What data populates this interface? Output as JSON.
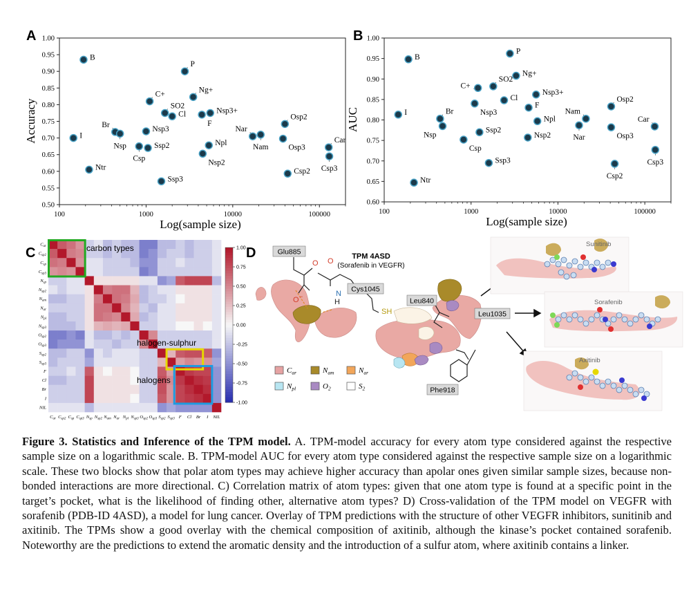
{
  "panels": {
    "A": {
      "letter": "A",
      "chart_data": {
        "type": "scatter",
        "title": "",
        "xlabel": "Log(sample size)",
        "ylabel": "Accuracy",
        "xscale": "log",
        "xlim": [
          100,
          200000
        ],
        "ylim": [
          0.5,
          1.0
        ],
        "xticks": [
          100,
          1000,
          10000,
          100000
        ],
        "xtick_labels": [
          "100",
          "1000",
          "10000",
          "100000"
        ],
        "yticks": [
          0.5,
          0.55,
          0.6,
          0.65,
          0.7,
          0.75,
          0.8,
          0.85,
          0.9,
          0.95,
          1.0
        ],
        "ytick_labels": [
          "0.50",
          "0.55",
          "0.60",
          "0.65",
          "0.70",
          "0.75",
          "0.80",
          "0.85",
          "0.90",
          "0.95",
          "1.00"
        ],
        "points": [
          {
            "label": "B",
            "x": 190,
            "y": 0.935,
            "pos": "r"
          },
          {
            "label": "I",
            "x": 145,
            "y": 0.7,
            "pos": "r"
          },
          {
            "label": "Ntr",
            "x": 220,
            "y": 0.605,
            "pos": "r"
          },
          {
            "label": "Br",
            "x": 440,
            "y": 0.718,
            "pos": "tl"
          },
          {
            "label": "Nsp",
            "x": 500,
            "y": 0.713,
            "pos": "b"
          },
          {
            "label": "Csp",
            "x": 830,
            "y": 0.675,
            "pos": "b"
          },
          {
            "label": "Ssp2",
            "x": 1050,
            "y": 0.67,
            "pos": "r"
          },
          {
            "label": "Nsp3",
            "x": 1000,
            "y": 0.72,
            "pos": "r"
          },
          {
            "label": "C+",
            "x": 1100,
            "y": 0.81,
            "pos": "tr"
          },
          {
            "label": "SO2",
            "x": 1650,
            "y": 0.775,
            "pos": "tr"
          },
          {
            "label": "Cl",
            "x": 2000,
            "y": 0.765,
            "pos": "r"
          },
          {
            "label": "P",
            "x": 2800,
            "y": 0.9,
            "pos": "tr"
          },
          {
            "label": "Ng+",
            "x": 3500,
            "y": 0.823,
            "pos": "tr"
          },
          {
            "label": "Ssp3",
            "x": 1500,
            "y": 0.57,
            "pos": "r"
          },
          {
            "label": "F",
            "x": 4400,
            "y": 0.77,
            "pos": "br"
          },
          {
            "label": "Nsp3+",
            "x": 5500,
            "y": 0.775,
            "pos": "r"
          },
          {
            "label": "Npl",
            "x": 5300,
            "y": 0.678,
            "pos": "r"
          },
          {
            "label": "Nsp2",
            "x": 4500,
            "y": 0.653,
            "pos": "br"
          },
          {
            "label": "Nar",
            "x": 17000,
            "y": 0.705,
            "pos": "tl"
          },
          {
            "label": "Nam",
            "x": 21000,
            "y": 0.71,
            "pos": "b"
          },
          {
            "label": "Osp2",
            "x": 40000,
            "y": 0.742,
            "pos": "tr"
          },
          {
            "label": "Osp3",
            "x": 38000,
            "y": 0.698,
            "pos": "br"
          },
          {
            "label": "Csp2",
            "x": 43000,
            "y": 0.593,
            "pos": "r"
          },
          {
            "label": "Car",
            "x": 128000,
            "y": 0.672,
            "pos": "tr"
          },
          {
            "label": "Csp3",
            "x": 130000,
            "y": 0.645,
            "pos": "b"
          }
        ]
      }
    },
    "B": {
      "letter": "B",
      "chart_data": {
        "type": "scatter",
        "title": "",
        "xlabel": "Log(sample size)",
        "ylabel": "AUC",
        "xscale": "log",
        "xlim": [
          100,
          200000
        ],
        "ylim": [
          0.6,
          1.0
        ],
        "xticks": [
          100,
          1000,
          10000,
          100000
        ],
        "xtick_labels": [
          "100",
          "1000",
          "10000",
          "100000"
        ],
        "yticks": [
          0.6,
          0.65,
          0.7,
          0.75,
          0.8,
          0.85,
          0.9,
          0.95,
          1.0
        ],
        "ytick_labels": [
          "0.60",
          "0.65",
          "0.70",
          "0.75",
          "0.80",
          "0.85",
          "0.90",
          "0.95",
          "1.00"
        ],
        "points": [
          {
            "label": "B",
            "x": 190,
            "y": 0.948,
            "pos": "r"
          },
          {
            "label": "I",
            "x": 145,
            "y": 0.813,
            "pos": "r"
          },
          {
            "label": "Ntr",
            "x": 220,
            "y": 0.647,
            "pos": "r"
          },
          {
            "label": "Br",
            "x": 440,
            "y": 0.803,
            "pos": "tr"
          },
          {
            "label": "Nsp",
            "x": 470,
            "y": 0.785,
            "pos": "bl"
          },
          {
            "label": "Csp",
            "x": 820,
            "y": 0.752,
            "pos": "br"
          },
          {
            "label": "Ssp2",
            "x": 1250,
            "y": 0.77,
            "pos": "r"
          },
          {
            "label": "Nsp3",
            "x": 1100,
            "y": 0.84,
            "pos": "br"
          },
          {
            "label": "C+",
            "x": 1200,
            "y": 0.878,
            "pos": "l"
          },
          {
            "label": "SO2",
            "x": 1800,
            "y": 0.882,
            "pos": "tr"
          },
          {
            "label": "Cl",
            "x": 2400,
            "y": 0.848,
            "pos": "r"
          },
          {
            "label": "P",
            "x": 2800,
            "y": 0.962,
            "pos": "r"
          },
          {
            "label": "Ng+",
            "x": 3300,
            "y": 0.908,
            "pos": "r"
          },
          {
            "label": "Ssp3",
            "x": 1600,
            "y": 0.695,
            "pos": "r"
          },
          {
            "label": "F",
            "x": 4600,
            "y": 0.83,
            "pos": "r"
          },
          {
            "label": "Nsp3+",
            "x": 5600,
            "y": 0.862,
            "pos": "r"
          },
          {
            "label": "Npl",
            "x": 5800,
            "y": 0.797,
            "pos": "r"
          },
          {
            "label": "Nsp2",
            "x": 4500,
            "y": 0.757,
            "pos": "r"
          },
          {
            "label": "Nam",
            "x": 21000,
            "y": 0.803,
            "pos": "tl"
          },
          {
            "label": "Nar",
            "x": 17500,
            "y": 0.787,
            "pos": "b"
          },
          {
            "label": "Osp2",
            "x": 41000,
            "y": 0.833,
            "pos": "tr"
          },
          {
            "label": "Osp3",
            "x": 41000,
            "y": 0.782,
            "pos": "br"
          },
          {
            "label": "Csp2",
            "x": 45000,
            "y": 0.693,
            "pos": "b"
          },
          {
            "label": "Car",
            "x": 130000,
            "y": 0.784,
            "pos": "tl"
          },
          {
            "label": "Csp3",
            "x": 132000,
            "y": 0.727,
            "pos": "b"
          }
        ]
      }
    },
    "C": {
      "letter": "C",
      "chart_data": {
        "type": "heatmap",
        "row_labels": [
          "Car",
          "Csp2",
          "Csp",
          "Csp3",
          "Nsp",
          "Nsp2",
          "Nam",
          "Nar",
          "Npl",
          "Nsp3",
          "Osp2",
          "Osp3",
          "Ssp2",
          "Ssp3",
          "F",
          "Cl",
          "Br",
          "I",
          "NIL"
        ],
        "col_labels": [
          "Car",
          "Csp2",
          "Csp",
          "Csp3",
          "Nsp",
          "Nsp2",
          "Nam",
          "Nar",
          "Npl",
          "Nsp3",
          "Osp2",
          "Osp3",
          "Ssp2",
          "Ssp3",
          "F",
          "Cl",
          "Br",
          "I",
          "NIL"
        ],
        "tick_row_display": [
          "C_ar",
          "C_sp2",
          "C_sp",
          "C_sp3",
          "N_sp",
          "N_sp2",
          "N_am",
          "N_ar",
          "N_pl",
          "N_sp3",
          "O_sp2",
          "O_sp3",
          "S_sp2",
          "S_sp3",
          "F",
          "Cl",
          "Br",
          "I",
          "NIL"
        ],
        "tick_col_display": [
          "C_ar",
          "C_sp2",
          "C_sp",
          "C_sp3",
          "N_sp",
          "N_sp2",
          "N_am",
          "N_ar",
          "N_pl",
          "N_sp3",
          "O_sp2",
          "O_sp3",
          "S_sp2",
          "S_sp3",
          "F",
          "Cl",
          "Br",
          "I",
          "NIL"
        ],
        "vmin": -1.0,
        "vmax": 1.0,
        "colorbar_ticks": [
          "1.00",
          "0.75",
          "0.50",
          "0.25",
          "0.00",
          "-0.25",
          "-0.50",
          "-0.75",
          "-1.00"
        ],
        "values": [
          [
            1.0,
            0.7,
            0.6,
            0.45,
            -0.2,
            -0.1,
            -0.3,
            -0.2,
            -0.3,
            -0.3,
            -0.6,
            -0.6,
            -0.3,
            -0.3,
            -0.2,
            -0.3,
            -0.2,
            -0.2,
            -0.1
          ],
          [
            0.7,
            1.0,
            0.55,
            0.5,
            -0.2,
            -0.2,
            -0.3,
            -0.2,
            -0.3,
            -0.3,
            -0.6,
            -0.5,
            -0.3,
            -0.2,
            -0.2,
            -0.3,
            -0.2,
            -0.2,
            -0.1
          ],
          [
            0.6,
            0.55,
            1.0,
            0.45,
            -0.1,
            -0.1,
            -0.2,
            -0.2,
            -0.2,
            -0.3,
            -0.5,
            -0.5,
            -0.2,
            -0.2,
            -0.1,
            -0.2,
            -0.2,
            -0.2,
            -0.1
          ],
          [
            0.45,
            0.5,
            0.45,
            1.0,
            -0.1,
            -0.1,
            -0.2,
            -0.2,
            -0.2,
            -0.2,
            -0.6,
            -0.5,
            -0.2,
            -0.2,
            -0.2,
            -0.2,
            -0.2,
            -0.2,
            -0.1
          ],
          [
            -0.2,
            -0.2,
            -0.1,
            -0.1,
            1.0,
            0.1,
            0.1,
            0.1,
            0.1,
            0.1,
            -0.1,
            -0.1,
            -0.5,
            -0.4,
            0.7,
            0.8,
            0.8,
            0.8,
            -0.3
          ],
          [
            -0.1,
            -0.2,
            -0.1,
            -0.1,
            0.1,
            1.0,
            0.55,
            0.6,
            0.6,
            0.3,
            -0.3,
            -0.2,
            -0.1,
            -0.1,
            0.1,
            0.1,
            0.1,
            0.1,
            -0.1
          ],
          [
            -0.3,
            -0.3,
            -0.2,
            -0.2,
            0.1,
            0.55,
            1.0,
            0.6,
            0.55,
            0.35,
            -0.3,
            -0.2,
            -0.2,
            -0.1,
            0.0,
            0.1,
            0.1,
            0.1,
            -0.1
          ],
          [
            -0.2,
            -0.2,
            -0.2,
            -0.2,
            0.1,
            0.6,
            0.6,
            1.0,
            0.5,
            0.3,
            -0.2,
            -0.3,
            -0.1,
            -0.1,
            0.1,
            0.1,
            0.1,
            0.1,
            -0.1
          ],
          [
            -0.3,
            -0.3,
            -0.2,
            -0.2,
            0.1,
            0.6,
            0.55,
            0.5,
            1.0,
            0.35,
            -0.3,
            -0.2,
            -0.1,
            -0.1,
            0.1,
            0.1,
            0.1,
            0.1,
            -0.1
          ],
          [
            -0.3,
            -0.3,
            -0.3,
            -0.2,
            0.1,
            0.3,
            0.35,
            0.3,
            0.35,
            1.0,
            -0.2,
            -0.2,
            -0.1,
            -0.1,
            0.0,
            0.0,
            0.1,
            0.0,
            -0.1
          ],
          [
            -0.6,
            -0.6,
            -0.5,
            -0.6,
            -0.1,
            -0.3,
            -0.3,
            -0.2,
            -0.3,
            -0.2,
            1.0,
            0.5,
            -0.2,
            -0.2,
            -0.2,
            -0.2,
            -0.2,
            -0.2,
            -0.1
          ],
          [
            -0.6,
            -0.5,
            -0.5,
            -0.5,
            -0.1,
            -0.2,
            -0.2,
            -0.3,
            -0.2,
            -0.2,
            0.5,
            1.0,
            -0.2,
            -0.2,
            -0.2,
            -0.2,
            -0.2,
            -0.2,
            -0.1
          ],
          [
            -0.3,
            -0.3,
            -0.2,
            -0.2,
            -0.5,
            -0.1,
            -0.2,
            -0.1,
            -0.1,
            -0.1,
            -0.2,
            -0.2,
            1.0,
            0.3,
            0.7,
            0.75,
            0.75,
            0.7,
            -0.5
          ],
          [
            -0.3,
            -0.2,
            -0.2,
            -0.2,
            -0.4,
            -0.1,
            -0.1,
            -0.1,
            -0.1,
            -0.1,
            -0.2,
            -0.2,
            0.3,
            1.0,
            0.4,
            0.5,
            0.45,
            0.45,
            -0.4
          ],
          [
            -0.2,
            -0.2,
            -0.1,
            -0.2,
            0.7,
            0.1,
            0.0,
            0.1,
            0.1,
            0.0,
            -0.2,
            -0.2,
            0.7,
            0.4,
            1.0,
            0.85,
            0.8,
            0.8,
            -0.5
          ],
          [
            -0.3,
            -0.3,
            -0.2,
            -0.2,
            0.8,
            0.1,
            0.1,
            0.1,
            0.1,
            0.0,
            -0.2,
            -0.2,
            0.75,
            0.5,
            0.85,
            1.0,
            0.9,
            0.85,
            -0.5
          ],
          [
            -0.2,
            -0.2,
            -0.2,
            -0.2,
            0.8,
            0.1,
            0.1,
            0.1,
            0.1,
            0.1,
            -0.2,
            -0.2,
            0.75,
            0.45,
            0.8,
            0.9,
            1.0,
            0.9,
            -0.5
          ],
          [
            -0.2,
            -0.2,
            -0.2,
            -0.2,
            0.8,
            0.1,
            0.1,
            0.1,
            0.1,
            0.0,
            -0.2,
            -0.2,
            0.7,
            0.45,
            0.8,
            0.85,
            0.9,
            1.0,
            -0.5
          ],
          [
            -0.1,
            -0.1,
            -0.1,
            -0.1,
            -0.3,
            -0.1,
            -0.1,
            -0.1,
            -0.1,
            -0.1,
            -0.1,
            -0.1,
            -0.5,
            -0.4,
            -0.5,
            -0.5,
            -0.5,
            -0.5,
            1.0
          ]
        ],
        "annotations": [
          {
            "text": "carbon types",
            "color": "#22aa22"
          },
          {
            "text": "halogen-sulphur",
            "color": "#e6d800"
          },
          {
            "text": "halogens",
            "color": "#1e9be0"
          }
        ]
      }
    },
    "D": {
      "letter": "D",
      "title": "TPM 4ASD",
      "subtitle": "(Sorafenib in VEGFR)",
      "residues": [
        "Glu885",
        "Cys1045",
        "Leu840",
        "Leu1035",
        "Phe918"
      ],
      "atoms": {
        "O": "O",
        "N": "N",
        "H": "H",
        "SH": "SH",
        "Ominus": "O"
      },
      "ligands": [
        "Sunitinib",
        "Sorafenib",
        "Axitinib"
      ],
      "legend": [
        {
          "base": "C",
          "sub": "ar",
          "color": "#e6a3a3"
        },
        {
          "base": "N",
          "sub": "am",
          "color": "#a88a2a"
        },
        {
          "base": "N",
          "sub": "ar",
          "color": "#f2a65a"
        },
        {
          "base": "N",
          "sub": "pl",
          "color": "#b8e6f2"
        },
        {
          "base": "O",
          "sub": "2",
          "color": "#a98ac2"
        },
        {
          "base": "S",
          "sub": "2",
          "color": "#ffffff"
        }
      ]
    }
  },
  "caption": {
    "bold_title": "Figure 3. Statistics and Inference of the TPM model.",
    "body": " A. TPM-model accuracy for every atom type considered against the respective sample size on a logarithmic scale. B. TPM-model AUC for every atom type considered against the respective sample size on a logarithmic scale. These two blocks show that polar atom types may achieve higher accuracy than apolar ones given similar sample sizes, because non-bonded interactions are more directional. C) Correlation matrix of atom types: given that one atom type is found at a specific point in the target’s pocket, what is the likelihood of finding other, alternative atom types? D) Cross-validation of the TPM model on VEGFR with sorafenib (PDB-ID 4ASD), a model for lung cancer. Overlay of TPM predictions with the structure of other VEGFR inhibitors, sunitinib and axitinib. The TPMs show a good overlay with the chemical composition of axitinib, although the kinase’s pocket contained sorafenib. Noteworthy are the predictions to extend the aromatic density and the introduction of a sulfur atom, where axitinib contains a linker."
  },
  "colors": {
    "marker_fill": "#1b3a4b",
    "marker_edge": "#4aa3c7",
    "heat_pos": "#b2182b",
    "heat_neg": "#2a2fb0",
    "box_carbon": "#22aa22",
    "box_halogen_sulphur": "#e6d800",
    "box_halogens": "#1e9be0"
  }
}
